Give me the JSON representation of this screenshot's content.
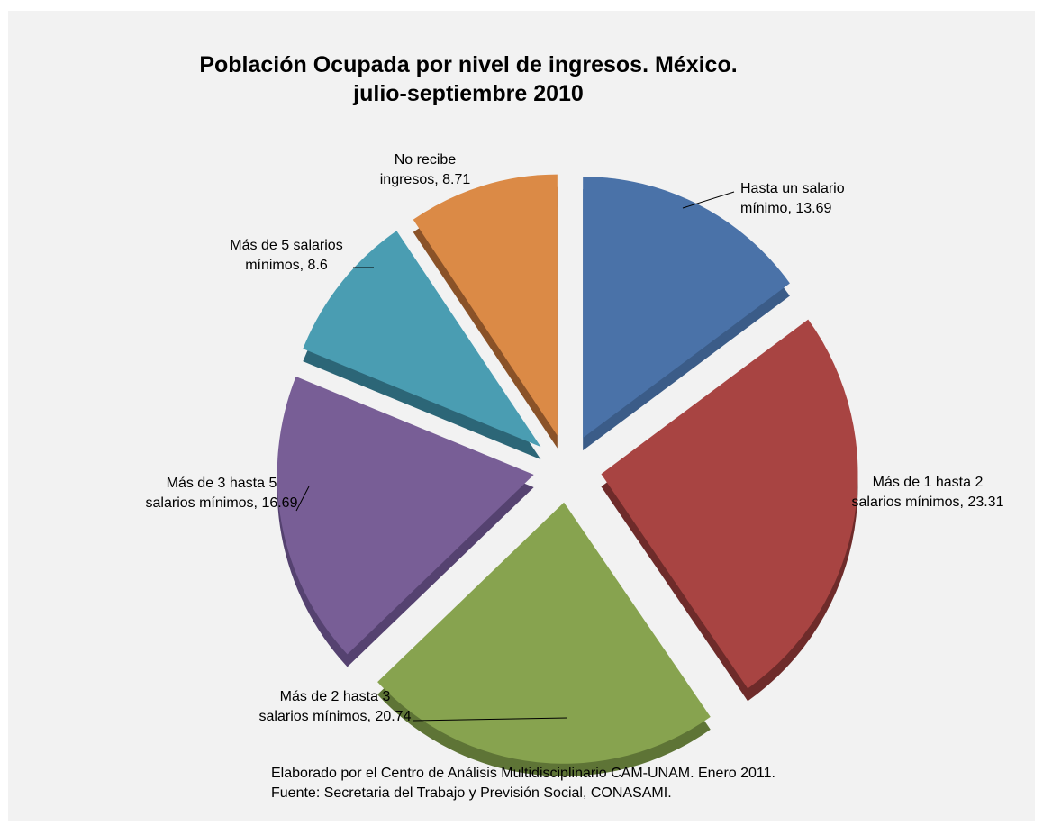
{
  "chart_data": {
    "type": "pie",
    "title": [
      "Población Ocupada por nivel de ingresos. México.",
      "julio-septiembre 2010"
    ],
    "slices": [
      {
        "label": [
          "Hasta un salario",
          "mínimo, 13.69"
        ],
        "value": 13.69,
        "color": "#4a72a8",
        "side": "#3b5c88"
      },
      {
        "label": [
          "Más de 1 hasta 2",
          "salarios mínimos, 23.31"
        ],
        "value": 23.31,
        "color": "#a84442",
        "side": "#6e2b2a"
      },
      {
        "label": [
          "Más de 2 hasta 3",
          "salarios mínimos, 20.74"
        ],
        "value": 20.74,
        "color": "#87a34f",
        "side": "#5e7436"
      },
      {
        "label": [
          "Más de 3 hasta 5",
          "salarios mínimos, 16.69"
        ],
        "value": 16.69,
        "color": "#785e96",
        "side": "#554270"
      },
      {
        "label": [
          "Más de 5 salarios",
          "mínimos, 8.6"
        ],
        "value": 8.6,
        "color": "#4a9db2",
        "side": "#2c6677"
      },
      {
        "label": [
          "No recibe",
          "ingresos, 8.71"
        ],
        "value": 8.71,
        "color": "#db8a46",
        "side": "#8a5228"
      }
    ]
  },
  "footer": {
    "line1": "Elaborado por el Centro de Análisis Multidisciplinario CAM-UNAM. Enero 2011.",
    "line2": "Fuente: Secretaria del Trabajo y Previsión Social, CONASAMI."
  }
}
